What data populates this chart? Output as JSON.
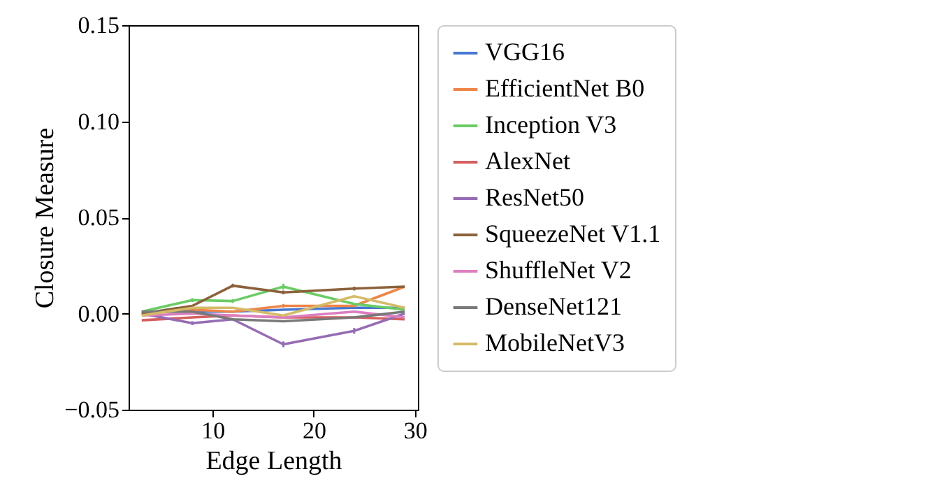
{
  "chart_data": {
    "type": "line",
    "xlabel": "Edge Length",
    "ylabel": "Closure Measure",
    "x": [
      3,
      8,
      12,
      17,
      24,
      29
    ],
    "xlim": [
      1.7,
      30.3
    ],
    "xticks": [
      10,
      20,
      30
    ],
    "ylim": [
      -0.05,
      0.15
    ],
    "yticks": [
      {
        "value": -0.05,
        "label": "−0.05"
      },
      {
        "value": 0,
        "label": "0.00"
      },
      0.05,
      {
        "value": 0.1,
        "label": "0.10"
      },
      0.15
    ],
    "grid": false,
    "legend": "right",
    "marker": "none",
    "line_style": "solid",
    "series": [
      {
        "name": "VGG16",
        "color": "#4878d0",
        "values": [
          0.001,
          0.001,
          0.001,
          0.002,
          0.003,
          0.003
        ]
      },
      {
        "name": "EfficientNet B0",
        "color": "#ee854a",
        "values": [
          0.0,
          0.002,
          0.001,
          0.004,
          0.004,
          0.014
        ],
        "errors": [
          null,
          null,
          null,
          0.001,
          null,
          null
        ]
      },
      {
        "name": "Inception V3",
        "color": "#6acc64",
        "values": [
          0.001,
          0.007,
          0.0065,
          0.014,
          0.005,
          0.002
        ],
        "errors": [
          null,
          0.001,
          0.001,
          0.0015,
          null,
          null
        ]
      },
      {
        "name": "AlexNet",
        "color": "#d65f5f",
        "values": [
          -0.0035,
          -0.002,
          -0.001,
          -0.002,
          -0.002,
          -0.003
        ]
      },
      {
        "name": "ResNet50",
        "color": "#956cb4",
        "values": [
          0.0,
          -0.005,
          -0.003,
          -0.016,
          -0.009,
          0.0
        ],
        "errors": [
          null,
          0.001,
          null,
          0.0015,
          0.0015,
          null
        ]
      },
      {
        "name": "SqueezeNet V1.1",
        "color": "#8c613c",
        "values": [
          0.0,
          0.004,
          0.0145,
          0.011,
          0.013,
          0.014
        ],
        "errors": [
          null,
          null,
          0.001,
          0.001,
          0.001,
          null
        ]
      },
      {
        "name": "ShuffleNet V2",
        "color": "#dc7ec0",
        "values": [
          -0.001,
          0.0,
          -0.001,
          -0.002,
          0.001,
          -0.002
        ]
      },
      {
        "name": "DenseNet121",
        "color": "#797979",
        "values": [
          0.001,
          0.001,
          -0.003,
          -0.004,
          -0.002,
          0.001
        ]
      },
      {
        "name": "MobileNetV3",
        "color": "#d5bb67",
        "values": [
          -0.001,
          0.003,
          0.003,
          -0.001,
          0.009,
          0.003
        ]
      }
    ]
  }
}
